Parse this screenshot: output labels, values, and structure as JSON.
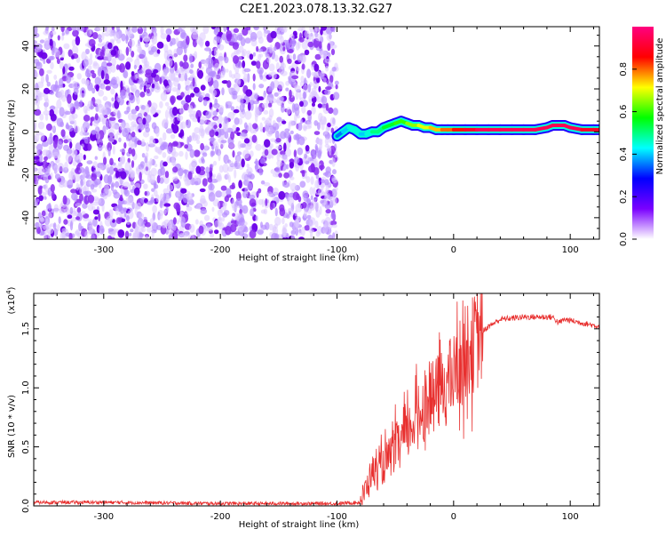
{
  "title": "C2E1.2023.078.13.32.G27",
  "chart_data": [
    {
      "type": "heatmap",
      "xlabel": "Height of straight line (km)",
      "ylabel": "Frequency (Hz)",
      "xlim": [
        -360,
        125
      ],
      "ylim": [
        -50,
        49
      ],
      "x_ticks": [
        -300,
        -200,
        -100,
        0,
        100
      ],
      "x_tick_labels": [
        "-300",
        "-200",
        "-100",
        "0",
        "100"
      ],
      "y_ticks": [
        -40,
        -20,
        0,
        20,
        40
      ],
      "y_tick_labels": [
        "-40",
        "-20",
        "0",
        "20",
        "40"
      ],
      "noise_region_x": [
        -360,
        -100
      ],
      "signal_track": {
        "x": [
          -100,
          -95,
          -90,
          -85,
          -80,
          -75,
          -70,
          -65,
          -60,
          -55,
          -50,
          -45,
          -40,
          -35,
          -30,
          -25,
          -20,
          -15,
          -10,
          -5,
          0,
          10,
          20,
          30,
          40,
          50,
          60,
          70,
          80,
          85,
          90,
          95,
          100,
          110,
          120,
          125
        ],
        "y": [
          -2,
          0,
          2,
          1,
          -1,
          -1,
          0,
          0,
          2,
          3,
          4,
          5,
          4,
          3,
          3,
          2,
          2,
          1,
          1,
          1,
          1,
          1,
          1,
          1,
          1,
          1,
          1,
          1,
          2,
          3,
          3,
          3,
          2,
          1,
          1,
          1
        ],
        "amplitude": [
          0.35,
          0.4,
          0.45,
          0.45,
          0.4,
          0.45,
          0.5,
          0.5,
          0.55,
          0.55,
          0.6,
          0.6,
          0.65,
          0.65,
          0.7,
          0.7,
          0.75,
          0.75,
          0.8,
          0.8,
          0.85,
          0.9,
          0.95,
          0.95,
          0.95,
          0.95,
          0.95,
          0.95,
          0.95,
          0.95,
          0.95,
          0.95,
          0.95,
          0.9,
          0.9,
          0.9
        ]
      },
      "colorbar": {
        "label": "Normalized spectral amplitude",
        "range": [
          0,
          1
        ],
        "ticks": [
          0.0,
          0.2,
          0.4,
          0.6,
          0.8
        ],
        "tick_labels": [
          "0.0",
          "0.2",
          "0.4",
          "0.6",
          "0.8"
        ],
        "colors": [
          "#ffffff",
          "#7a00ff",
          "#0000ff",
          "#00ffff",
          "#00ff00",
          "#ffff00",
          "#ff0000",
          "#ff0080"
        ]
      }
    },
    {
      "type": "line",
      "xlabel": "Height of straight line (km)",
      "ylabel": "SNR (10 * v/v)",
      "y_multiplier_label": "(x10",
      "y_multiplier_exp": "4",
      "y_multiplier_close": ")",
      "xlim": [
        -360,
        125
      ],
      "ylim": [
        0,
        1.8
      ],
      "x_ticks": [
        -300,
        -200,
        -100,
        0,
        100
      ],
      "x_tick_labels": [
        "-300",
        "-200",
        "-100",
        "0",
        "100"
      ],
      "y_ticks": [
        0.0,
        0.5,
        1.0,
        1.5
      ],
      "y_tick_labels": [
        "0.0",
        "0.5",
        "1.0",
        "1.5"
      ],
      "color": "#e8302f",
      "x": [
        -360,
        -300,
        -200,
        -100,
        -80,
        -75,
        -70,
        -65,
        -60,
        -55,
        -50,
        -45,
        -40,
        -35,
        -30,
        -25,
        -20,
        -15,
        -10,
        -5,
        0,
        5,
        10,
        15,
        20,
        25,
        30,
        35,
        40,
        50,
        60,
        70,
        80,
        85,
        90,
        95,
        100,
        110,
        120,
        125
      ],
      "y": [
        0.03,
        0.03,
        0.02,
        0.02,
        0.03,
        0.15,
        0.3,
        0.28,
        0.35,
        0.4,
        0.5,
        0.55,
        0.6,
        0.7,
        0.78,
        0.85,
        0.9,
        0.95,
        1.0,
        1.05,
        1.1,
        1.2,
        1.3,
        1.35,
        1.4,
        1.48,
        1.52,
        1.55,
        1.58,
        1.59,
        1.6,
        1.6,
        1.6,
        1.6,
        1.55,
        1.58,
        1.57,
        1.55,
        1.53,
        1.52
      ]
    }
  ]
}
